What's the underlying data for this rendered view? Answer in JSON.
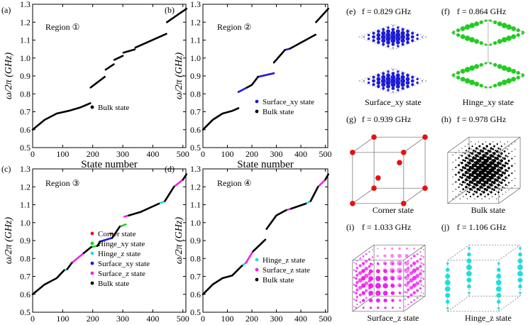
{
  "chart_data": [
    {
      "type": "scatter",
      "panel_label": "(a)",
      "region_label": "Region ①",
      "xlabel": "State number",
      "ylabel": "ω/2π (GHz)",
      "xlim": [
        0,
        510
      ],
      "ylim": [
        0.5,
        1.3
      ],
      "xticks": [
        "0",
        "100",
        "200",
        "300",
        "400",
        "500"
      ],
      "yticks": [
        "0.5",
        "0.6",
        "0.7",
        "0.8",
        "0.9",
        "1.0",
        "1.1",
        "1.2",
        "1.3"
      ],
      "legend": [
        "Bulk state"
      ],
      "series": [
        {
          "name": "Bulk state",
          "color": "#000000",
          "segments": [
            {
              "x": [
                0,
                40,
                80,
                120,
                160,
                192
              ],
              "y": [
                0.6,
                0.655,
                0.69,
                0.705,
                0.725,
                0.748
              ]
            },
            {
              "x": [
                193,
                240
              ],
              "y": [
                0.835,
                0.895
              ]
            },
            {
              "x": [
                243,
                270
              ],
              "y": [
                0.935,
                0.965
              ]
            },
            {
              "x": [
                272,
                300
              ],
              "y": [
                0.99,
                1.012
              ]
            },
            {
              "x": [
                302,
                340
              ],
              "y": [
                1.03,
                1.048
              ]
            },
            {
              "x": [
                342,
                445
              ],
              "y": [
                1.058,
                1.135
              ]
            },
            {
              "x": [
                447,
                512
              ],
              "y": [
                1.2,
                1.275
              ]
            }
          ]
        }
      ]
    },
    {
      "type": "scatter",
      "panel_label": "(b)",
      "region_label": "Region ②",
      "xlabel": "State number",
      "ylabel": "ω/2π (GHz)",
      "xlim": [
        0,
        510
      ],
      "ylim": [
        0.5,
        1.3
      ],
      "xticks": [
        "0",
        "100",
        "200",
        "300",
        "400",
        "500"
      ],
      "yticks": [
        "0.5",
        "0.6",
        "0.7",
        "0.8",
        "0.9",
        "1.0",
        "1.1",
        "1.2",
        "1.3"
      ],
      "legend": [
        "Surface_xy state",
        "Bulk state"
      ],
      "series": [
        {
          "name": "Surface_xy state",
          "color": "#1c1cd6",
          "segments": [
            {
              "x": [
                145,
                180
              ],
              "y": [
                0.81,
                0.835
              ]
            },
            {
              "x": [
                225,
                290
              ],
              "y": [
                0.895,
                0.915
              ]
            },
            {
              "x": [
                335,
                355
              ],
              "y": [
                1.045,
                1.052
              ]
            }
          ]
        },
        {
          "name": "Bulk state",
          "color": "#000000",
          "segments": [
            {
              "x": [
                0,
                40,
                80,
                120,
                145
              ],
              "y": [
                0.6,
                0.655,
                0.69,
                0.705,
                0.72
              ]
            },
            {
              "x": [
                180,
                200,
                225
              ],
              "y": [
                0.835,
                0.85,
                0.895
              ]
            },
            {
              "x": [
                290,
                335
              ],
              "y": [
                0.975,
                1.045
              ]
            },
            {
              "x": [
                355,
                460
              ],
              "y": [
                1.052,
                1.13
              ]
            },
            {
              "x": [
                462,
                512
              ],
              "y": [
                1.2,
                1.275
              ]
            }
          ]
        }
      ]
    },
    {
      "type": "scatter",
      "panel_label": "(c)",
      "region_label": "Region ③",
      "xlabel": "State number",
      "ylabel": "ω/2π (GHz)",
      "xlim": [
        0,
        510
      ],
      "ylim": [
        0.5,
        1.3
      ],
      "xticks": [
        "0",
        "100",
        "200",
        "300",
        "400",
        "500"
      ],
      "yticks": [
        "0.5",
        "0.6",
        "0.7",
        "0.8",
        "0.9",
        "1.0",
        "1.1",
        "1.2",
        "1.3"
      ],
      "legend": [
        "Corner state",
        "Hinge_xy state",
        "Hinge_z state",
        "Surface_xy state",
        "Surface_z state",
        "Bulk state"
      ],
      "series": [
        {
          "name": "Corner state",
          "color": "#e81010",
          "segments": [
            {
              "x": [
                258,
                266
              ],
              "y": [
                0.939,
                0.939
              ]
            }
          ]
        },
        {
          "name": "Hinge_xy state",
          "color": "#22cc22",
          "segments": [
            {
              "x": [
                195,
                215
              ],
              "y": [
                0.864,
                0.87
              ]
            },
            {
              "x": [
                290,
                310
              ],
              "y": [
                0.978,
                0.99
              ]
            }
          ]
        },
        {
          "name": "Hinge_z state",
          "color": "#22dddd",
          "segments": [
            {
              "x": [
                105,
                115
              ],
              "y": [
                0.735,
                0.74
              ]
            },
            {
              "x": [
                420,
                440
              ],
              "y": [
                1.106,
                1.12
              ]
            }
          ]
        },
        {
          "name": "Surface_xy state",
          "color": "#1c1cd6",
          "segments": [
            {
              "x": [
                225,
                265
              ],
              "y": [
                0.895,
                0.915
              ]
            }
          ]
        },
        {
          "name": "Surface_z state",
          "color": "#ee22ee",
          "segments": [
            {
              "x": [
                130,
                170
              ],
              "y": [
                0.775,
                0.83
              ]
            },
            {
              "x": [
                305,
                320
              ],
              "y": [
                1.033,
                1.04
              ]
            },
            {
              "x": [
                470,
                500
              ],
              "y": [
                1.2,
                1.24
              ]
            }
          ]
        },
        {
          "name": "Bulk state",
          "color": "#000000",
          "segments": [
            {
              "x": [
                0,
                40,
                80,
                105
              ],
              "y": [
                0.6,
                0.655,
                0.69,
                0.735
              ]
            },
            {
              "x": [
                115,
                130
              ],
              "y": [
                0.74,
                0.775
              ]
            },
            {
              "x": [
                170,
                195
              ],
              "y": [
                0.83,
                0.864
              ]
            },
            {
              "x": [
                215,
                225
              ],
              "y": [
                0.87,
                0.895
              ]
            },
            {
              "x": [
                265,
                290
              ],
              "y": [
                0.915,
                0.978
              ]
            },
            {
              "x": [
                320,
                360,
                420
              ],
              "y": [
                1.04,
                1.06,
                1.106
              ]
            },
            {
              "x": [
                440,
                470
              ],
              "y": [
                1.12,
                1.2
              ]
            },
            {
              "x": [
                500,
                512
              ],
              "y": [
                1.24,
                1.27
              ]
            }
          ]
        }
      ]
    },
    {
      "type": "scatter",
      "panel_label": "(d)",
      "region_label": "Region ④",
      "xlabel": "State number",
      "ylabel": "ω/2π (GHz)",
      "xlim": [
        0,
        510
      ],
      "ylim": [
        0.5,
        1.3
      ],
      "xticks": [
        "0",
        "100",
        "200",
        "300",
        "400",
        "500"
      ],
      "yticks": [
        "0.5",
        "0.6",
        "0.7",
        "0.8",
        "0.9",
        "1.0",
        "1.1",
        "1.2",
        "1.3"
      ],
      "legend": [
        "Hinge_z state",
        "Surface_z state",
        "Bulk state"
      ],
      "series": [
        {
          "name": "Hinge_z state",
          "color": "#22dddd",
          "segments": [
            {
              "x": [
                160,
                180
              ],
              "y": [
                0.76,
                0.78
              ]
            },
            {
              "x": [
                420,
                440
              ],
              "y": [
                1.106,
                1.12
              ]
            }
          ]
        },
        {
          "name": "Surface_z state",
          "color": "#ee22ee",
          "segments": [
            {
              "x": [
                175,
                205
              ],
              "y": [
                0.775,
                0.84
              ]
            },
            {
              "x": [
                340,
                360
              ],
              "y": [
                1.07,
                1.078
              ]
            },
            {
              "x": [
                470,
                500
              ],
              "y": [
                1.2,
                1.24
              ]
            }
          ]
        },
        {
          "name": "Bulk state",
          "color": "#000000",
          "segments": [
            {
              "x": [
                0,
                40,
                80,
                120,
                160
              ],
              "y": [
                0.6,
                0.655,
                0.69,
                0.705,
                0.76
              ]
            },
            {
              "x": [
                205,
                255
              ],
              "y": [
                0.84,
                0.905
              ]
            },
            {
              "x": [
                260,
                300,
                340
              ],
              "y": [
                0.965,
                1.04,
                1.07
              ]
            },
            {
              "x": [
                360,
                420
              ],
              "y": [
                1.078,
                1.106
              ]
            },
            {
              "x": [
                440,
                470
              ],
              "y": [
                1.12,
                1.2
              ]
            },
            {
              "x": [
                500,
                512
              ],
              "y": [
                1.24,
                1.27
              ]
            }
          ]
        }
      ]
    }
  ],
  "mode_panels": [
    {
      "label": "(e)",
      "freq": "f = 0.829 GHz",
      "caption": "Surface_xy state",
      "pattern": "two-square-planes",
      "color": "#1c1cd6"
    },
    {
      "label": "(f)",
      "freq": "f = 0.864 GHz",
      "caption": "Hinge_xy state",
      "pattern": "square-hinges",
      "color": "#22cc22"
    },
    {
      "label": "(g)",
      "freq": "f = 0.939 GHz",
      "caption": "Corner state",
      "pattern": "cube-corners",
      "color": "#e81010"
    },
    {
      "label": "(h)",
      "freq": "f = 0.978 GHz",
      "caption": "Bulk state",
      "pattern": "bulk-cube",
      "color": "#000000"
    },
    {
      "label": "(i)",
      "freq": "f = 1.033 GHz",
      "caption": "Surface_z state",
      "pattern": "cube-faces",
      "color": "#ee22ee"
    },
    {
      "label": "(j)",
      "freq": "f = 1.106 GHz",
      "caption": "Hinge_z state",
      "pattern": "vertical-hinges",
      "color": "#22dddd"
    }
  ]
}
